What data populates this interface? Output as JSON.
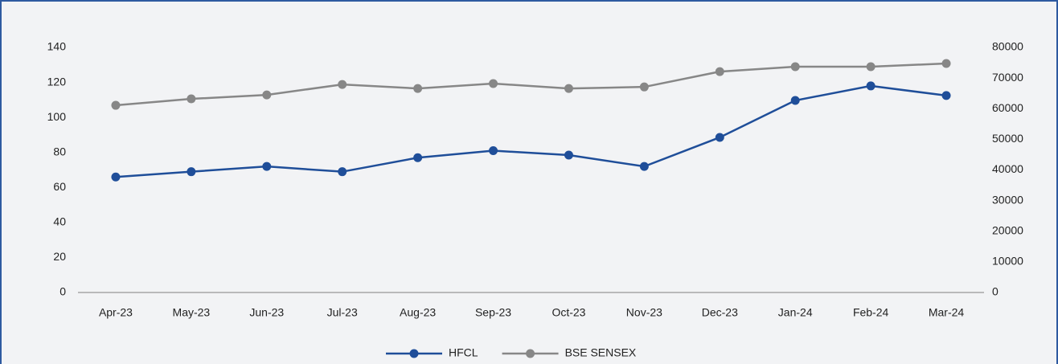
{
  "chart_data": {
    "type": "line",
    "categories": [
      "Apr-23",
      "May-23",
      "Jun-23",
      "Jul-23",
      "Aug-23",
      "Sep-23",
      "Oct-23",
      "Nov-23",
      "Dec-23",
      "Jan-24",
      "Feb-24",
      "Mar-24"
    ],
    "series": [
      {
        "name": "HFCL",
        "color": "#1f4e99",
        "values": [
          66,
          69,
          72,
          69,
          77,
          81,
          78.5,
          72,
          88.6,
          109.7,
          118,
          112.5
        ]
      },
      {
        "name": "BSE SENSEX",
        "color": "#878787",
        "axis": "y2",
        "values": [
          61100,
          63200,
          64500,
          67900,
          66600,
          68200,
          66600,
          67100,
          72100,
          73700,
          73700,
          74750
        ]
      }
    ],
    "ylim": [
      0,
      140
    ],
    "yticks": [
      0,
      20,
      40,
      60,
      80,
      100,
      120,
      140
    ],
    "y2lim": [
      0,
      80000
    ],
    "y2ticks": [
      0,
      10000,
      20000,
      30000,
      40000,
      50000,
      60000,
      70000,
      80000
    ],
    "legend": "bottom",
    "grid": false
  }
}
